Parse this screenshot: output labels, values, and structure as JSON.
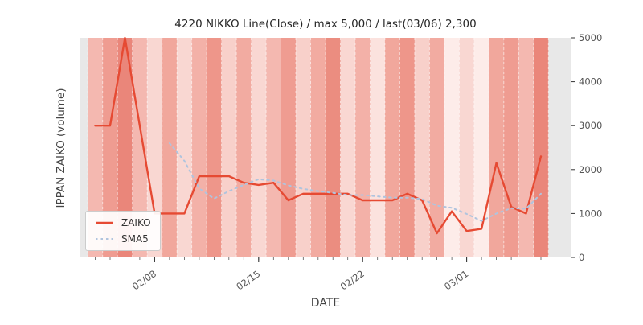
{
  "chart_data": {
    "type": "line",
    "title": "4220 NIKKO Line(Close) / max 5,000 / last(03/06) 2,300",
    "xlabel": "DATE",
    "ylabel": "IPPAN ZAIKO (volume)",
    "x": [
      "02/04",
      "02/05",
      "02/06",
      "02/07",
      "02/08",
      "02/09",
      "02/10",
      "02/11",
      "02/12",
      "02/13",
      "02/14",
      "02/15",
      "02/16",
      "02/17",
      "02/18",
      "02/19",
      "02/20",
      "02/21",
      "02/22",
      "02/23",
      "02/24",
      "02/25",
      "02/26",
      "02/27",
      "02/28",
      "03/01",
      "03/02",
      "03/03",
      "03/04",
      "03/05",
      "03/06"
    ],
    "series": [
      {
        "name": "ZAIKO",
        "color": "#e64a33",
        "style": "solid",
        "width": 2.4,
        "values": [
          3000,
          3000,
          5000,
          3000,
          1000,
          1000,
          1000,
          1850,
          1850,
          1850,
          1700,
          1650,
          1700,
          1300,
          1450,
          1450,
          1450,
          1450,
          1300,
          1300,
          1300,
          1450,
          1300,
          550,
          1050,
          600,
          650,
          2150,
          1150,
          1000,
          2300
        ]
      },
      {
        "name": "SMA5",
        "color": "#b0c4de",
        "style": "dotted",
        "width": 2,
        "values": [
          null,
          null,
          null,
          null,
          null,
          2600,
          2200,
          1570,
          1340,
          1510,
          1650,
          1780,
          1750,
          1640,
          1560,
          1510,
          1470,
          1420,
          1420,
          1390,
          1360,
          1360,
          1330,
          1180,
          1130,
          990,
          830,
          1000,
          1120,
          1110,
          1450
        ]
      }
    ],
    "x_ticks": [
      "02/08",
      "02/15",
      "02/22",
      "03/01"
    ],
    "y_ticks": [
      0,
      1000,
      2000,
      3000,
      4000,
      5000
    ],
    "ylim": [
      0,
      5000
    ],
    "legend_position": "lower left",
    "grid": "white-dashed-vertical",
    "plot_bg": "#e8e8e8",
    "band_colors": [
      "#f4b8b0",
      "#ef9c91",
      "#ea867a",
      "#f4b8b0",
      "#f9d7d2",
      "#f1a79c",
      "#f9d7d2",
      "#f3b1a8",
      "#ee968a",
      "#f8d0ca",
      "#f2aba1",
      "#f9d7d2",
      "#f4b8b0",
      "#ef9c91",
      "#f8d0ca",
      "#f2aba1",
      "#eb8d80",
      "#f9d7d2",
      "#f3b1a8",
      "#fbe2de",
      "#f1a79c",
      "#ee968a",
      "#f8d0ca",
      "#f2aba1",
      "#fdece9",
      "#f9d7d2",
      "#fdece9",
      "#f1a79c",
      "#ef9c91",
      "#f4b8b0",
      "#ea867a"
    ]
  }
}
